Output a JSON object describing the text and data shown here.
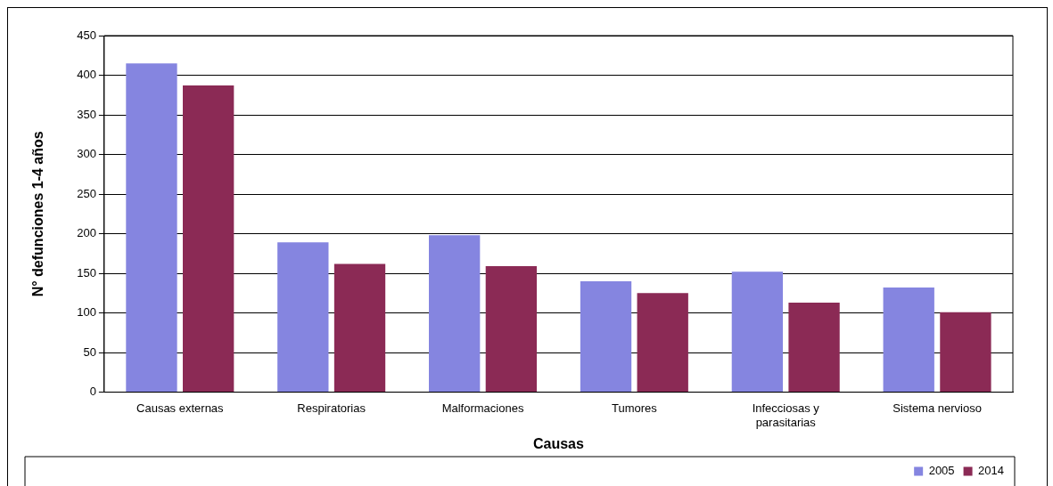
{
  "chart_data": {
    "type": "bar",
    "xlabel": "Causas",
    "ylabel": "N° defunciones 1-4 años",
    "categories": [
      "Causas externas",
      "Respiratorias",
      "Malformaciones",
      "Tumores",
      "Infecciosas y parasitarias",
      "Sistema nervioso"
    ],
    "series": [
      {
        "name": "2005",
        "color": "#8585e0",
        "values": [
          415,
          189,
          198,
          140,
          152,
          132
        ]
      },
      {
        "name": "2014",
        "color": "#8b2a55",
        "values": [
          387,
          162,
          159,
          125,
          113,
          101
        ]
      }
    ],
    "ylim": [
      0,
      450
    ],
    "yticks": [
      0,
      50,
      100,
      150,
      200,
      250,
      300,
      350,
      400,
      450
    ],
    "grid": "y",
    "legend": "bottom right"
  }
}
